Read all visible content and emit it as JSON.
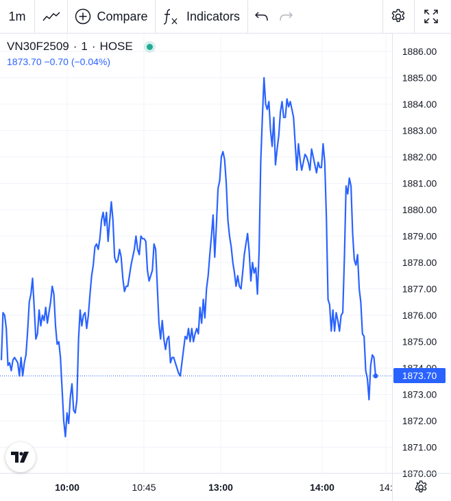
{
  "toolbar": {
    "interval": "1m",
    "compare_label": "Compare",
    "indicators_label": "Indicators",
    "icons": [
      "chart-type-icon",
      "compare-plus-icon",
      "fx-icon",
      "undo-icon",
      "redo-icon",
      "settings-gear-icon",
      "fullscreen-icon"
    ]
  },
  "legend": {
    "symbol": "VN30F2509",
    "interval": "1",
    "exchange": "HOSE",
    "separator": "·",
    "last": "1873.70",
    "change": "−0.70",
    "change_pct": "(−0.04%)",
    "status_color": "#22ab94"
  },
  "price_tag": "1873.70",
  "chart_data": {
    "type": "line",
    "line_color": "#2962ff",
    "grid": true,
    "ylim": [
      1870,
      1886.5
    ],
    "y_ticks": [
      "1886.00",
      "1885.00",
      "1884.00",
      "1883.00",
      "1882.00",
      "1881.00",
      "1880.00",
      "1879.00",
      "1878.00",
      "1877.00",
      "1876.00",
      "1875.00",
      "1874.00",
      "1873.00",
      "1872.00",
      "1871.00",
      "1870.00"
    ],
    "x_ticks": [
      {
        "label": "10:00",
        "bold": true
      },
      {
        "label": "10:45",
        "bold": false
      },
      {
        "label": "13:00",
        "bold": true
      },
      {
        "label": "14:00",
        "bold": true
      },
      {
        "label": "14:",
        "bold": false
      }
    ],
    "last_value": 1873.7,
    "values": [
      1874.3,
      1876.1,
      1876,
      1875.5,
      1874.1,
      1874.2,
      1873.9,
      1874.3,
      1874.4,
      1874.3,
      1874.2,
      1873.7,
      1874.4,
      1873.7,
      1874.2,
      1874.5,
      1875.4,
      1876.5,
      1876.8,
      1877.4,
      1876.3,
      1875.1,
      1875.3,
      1876.2,
      1875.6,
      1876,
      1875.8,
      1876.3,
      1875.7,
      1876.1,
      1876.5,
      1877.1,
      1876.8,
      1875.6,
      1874.9,
      1875,
      1874.4,
      1873.2,
      1872,
      1871.4,
      1872.3,
      1871.9,
      1872.9,
      1873.4,
      1872.4,
      1872.3,
      1872.8,
      1875.1,
      1876.2,
      1875.6,
      1876,
      1876.1,
      1875.5,
      1876,
      1876.8,
      1877.5,
      1877.9,
      1878.6,
      1878.7,
      1878.5,
      1878.9,
      1879.6,
      1879.9,
      1879.4,
      1879.9,
      1878.8,
      1879.6,
      1880.3,
      1879.6,
      1878.2,
      1878,
      1878.1,
      1878.5,
      1878.2,
      1877.4,
      1876.9,
      1877.1,
      1877.1,
      1877.5,
      1877.9,
      1878.2,
      1878.5,
      1879,
      1878.5,
      1878.3,
      1879,
      1878.9,
      1878.9,
      1878.8,
      1877.7,
      1877.3,
      1877.5,
      1877.7,
      1878.7,
      1878.5,
      1877.1,
      1875.7,
      1875.1,
      1875.8,
      1875.1,
      1874.7,
      1875.1,
      1875.2,
      1874.2,
      1874.4,
      1874.4,
      1874.2,
      1874,
      1873.8,
      1873.7,
      1874.2,
      1874.7,
      1875.2,
      1875.1,
      1875.5,
      1875,
      1875.5,
      1875,
      1875.3,
      1875.5,
      1875.3,
      1876.3,
      1875.7,
      1876.6,
      1875.9,
      1877,
      1877.5,
      1878.3,
      1879,
      1879.8,
      1878.2,
      1879.4,
      1880.8,
      1881.1,
      1882,
      1882.2,
      1881.9,
      1881,
      1879.6,
      1879,
      1878.6,
      1878,
      1877.6,
      1877.1,
      1877.5,
      1877.1,
      1877,
      1877.6,
      1878.3,
      1878.7,
      1879.1,
      1878.4,
      1877.3,
      1878,
      1877.6,
      1877.8,
      1876.8,
      1878.4,
      1881.8,
      1883.5,
      1885,
      1884,
      1883.8,
      1884.1,
      1883,
      1882.4,
      1883.5,
      1881.7,
      1882.3,
      1882.8,
      1883.7,
      1884.1,
      1883.5,
      1883.5,
      1884.2,
      1883.9,
      1884.1,
      1883.8,
      1883.5,
      1882.5,
      1881.5,
      1882.5,
      1881.9,
      1881.5,
      1881.8,
      1882.1,
      1882,
      1881.8,
      1881.5,
      1882.3,
      1882,
      1881.7,
      1881.4,
      1881.8,
      1881.6,
      1881.6,
      1882.5,
      1881.8,
      1879.7,
      1876.6,
      1876.4,
      1875.4,
      1876.2,
      1875.4,
      1876.1,
      1875.8,
      1875.4,
      1876,
      1876.1,
      1878.2,
      1880.9,
      1880.6,
      1881.2,
      1880.9,
      1879.1,
      1878.1,
      1877.9,
      1878.3,
      1877,
      1876.5,
      1875.3,
      1875.2,
      1873.9,
      1873.6,
      1872.8,
      1874.1,
      1874.5,
      1874.4,
      1873.7
    ]
  }
}
